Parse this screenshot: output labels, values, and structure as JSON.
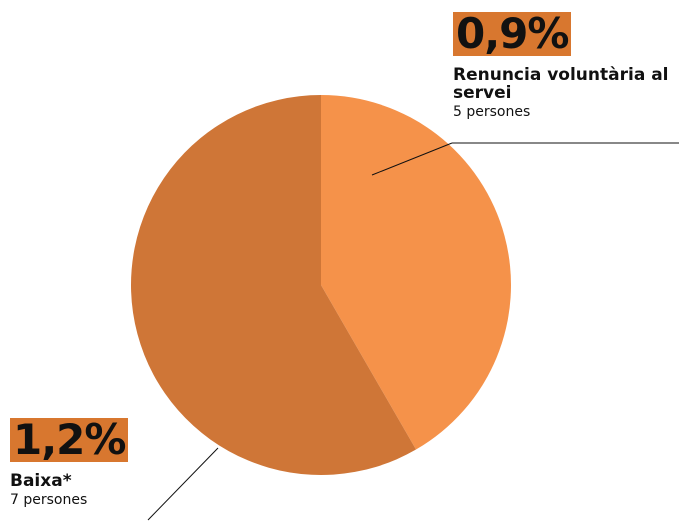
{
  "chart_data": {
    "type": "pie",
    "slices": [
      {
        "percent_label": "0,9%",
        "label": "Renuncia voluntària al servei",
        "count": "5 persones",
        "value": 5,
        "color": "#F5924A",
        "label_bg": "#D8772F"
      },
      {
        "percent_label": "1,2%",
        "label": "Baixa*",
        "count": "7 persones",
        "value": 7,
        "color": "#CF7637",
        "label_bg": "#D8772F"
      }
    ],
    "title": "",
    "legend": "none"
  }
}
